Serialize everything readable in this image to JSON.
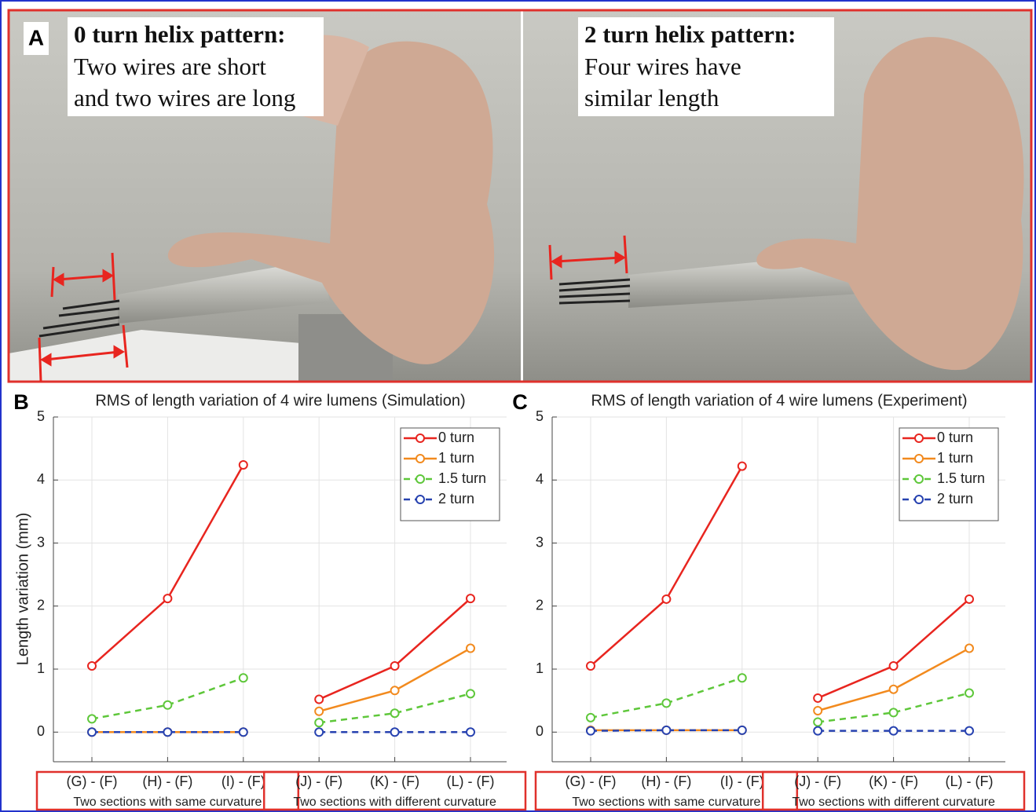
{
  "panel_a": {
    "label": "A",
    "left": {
      "title": "0 turn helix pattern:",
      "lines": [
        "Two wires are short",
        "and two wires are long"
      ]
    },
    "right": {
      "title": "2 turn helix pattern:",
      "lines": [
        "Four wires have",
        "similar length"
      ]
    }
  },
  "chart_data": [
    {
      "type": "line",
      "panel_label": "B",
      "title": "RMS of length variation of 4 wire lumens (Simulation)",
      "ylabel": "Length variation (mm)",
      "groups": [
        {
          "label": "Two sections with same curvature",
          "categories": [
            "(G) - (F)",
            "(H) - (F)",
            "(I) - (F)"
          ]
        },
        {
          "label": "Two sections with different curvature",
          "categories": [
            "(J) - (F)",
            "(K) - (F)",
            "(L) - (F)"
          ]
        }
      ],
      "series": [
        {
          "name": "0 turn",
          "color": "#e8251f",
          "linestyle": "solid",
          "values": [
            [
              1.05,
              2.12,
              4.24
            ],
            [
              0.52,
              1.05,
              2.12
            ]
          ]
        },
        {
          "name": "1 turn",
          "color": "#f28a1e",
          "linestyle": "solid",
          "values": [
            [
              0,
              0,
              0
            ],
            [
              0.33,
              0.66,
              1.33
            ]
          ]
        },
        {
          "name": "1.5 turn",
          "color": "#5ec73a",
          "linestyle": "dashed",
          "values": [
            [
              0.21,
              0.43,
              0.86
            ],
            [
              0.15,
              0.3,
              0.61
            ]
          ]
        },
        {
          "name": "2 turn",
          "color": "#2742b0",
          "linestyle": "dashed",
          "values": [
            [
              0,
              0,
              0
            ],
            [
              0,
              0,
              0
            ]
          ]
        }
      ],
      "ylim": [
        -0.47,
        5
      ],
      "yticks": [
        0,
        1,
        2,
        3,
        4,
        5
      ],
      "grid": true,
      "legend": "top-right"
    },
    {
      "type": "line",
      "panel_label": "C",
      "title": "RMS of length variation of 4 wire lumens (Experiment)",
      "groups": [
        {
          "label": "Two sections with same curvature",
          "categories": [
            "(G) - (F)",
            "(H) - (F)",
            "(I) - (F)"
          ]
        },
        {
          "label": "Two sections with different curvature",
          "categories": [
            "(J) - (F)",
            "(K) - (F)",
            "(L) - (F)"
          ]
        }
      ],
      "series": [
        {
          "name": "0 turn",
          "color": "#e8251f",
          "linestyle": "solid",
          "values": [
            [
              1.05,
              2.11,
              4.22
            ],
            [
              0.54,
              1.05,
              2.11
            ]
          ]
        },
        {
          "name": "1 turn",
          "color": "#f28a1e",
          "linestyle": "solid",
          "values": [
            [
              0.03,
              0.03,
              0.03
            ],
            [
              0.34,
              0.68,
              1.33
            ]
          ]
        },
        {
          "name": "1.5 turn",
          "color": "#5ec73a",
          "linestyle": "dashed",
          "values": [
            [
              0.23,
              0.46,
              0.86
            ],
            [
              0.16,
              0.31,
              0.62
            ]
          ]
        },
        {
          "name": "2 turn",
          "color": "#2742b0",
          "linestyle": "dashed",
          "values": [
            [
              0.02,
              0.03,
              0.03
            ],
            [
              0.02,
              0.02,
              0.02
            ]
          ]
        }
      ],
      "ylim": [
        -0.47,
        5
      ],
      "yticks": [
        0,
        1,
        2,
        3,
        4,
        5
      ],
      "grid": true,
      "legend": "top-right"
    }
  ]
}
